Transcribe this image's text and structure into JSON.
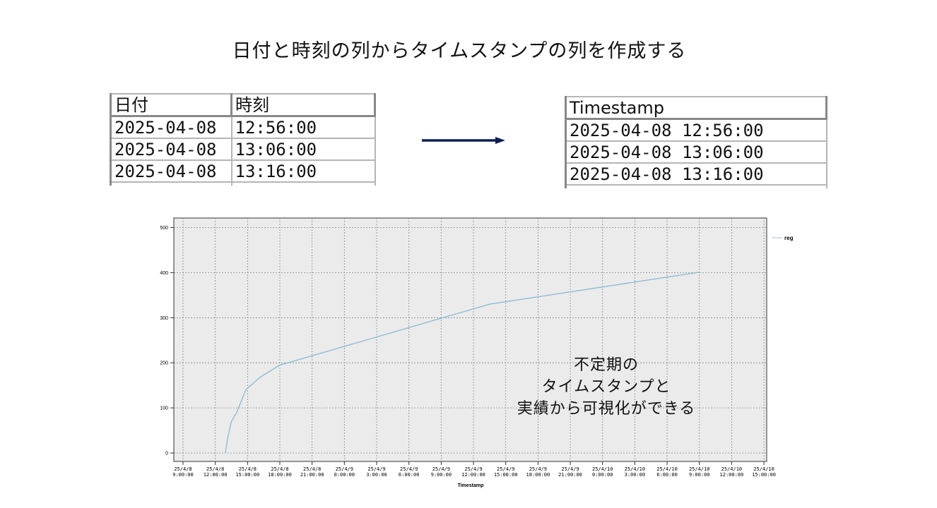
{
  "page": {
    "title": "日付と時刻の列からタイムスタンプの列を作成する",
    "annotation_lines": [
      "不定期の",
      "タイムスタンプと",
      "実績から可視化ができる"
    ],
    "arrow_color": "#0c1f55"
  },
  "left_table": {
    "headers": [
      "日付",
      "時刻"
    ],
    "rows": [
      [
        "2025-04-08",
        "12:56:00"
      ],
      [
        "2025-04-08",
        "13:06:00"
      ],
      [
        "2025-04-08",
        "13:16:00"
      ]
    ]
  },
  "right_table": {
    "headers": [
      "Timestamp"
    ],
    "rows": [
      [
        "2025-04-08 12:56:00"
      ],
      [
        "2025-04-08 13:06:00"
      ],
      [
        "2025-04-08 13:16:00"
      ]
    ]
  },
  "chart_data": {
    "type": "line",
    "title": "",
    "xlabel": "Timestamp",
    "ylabel": "",
    "ylim": [
      0,
      500
    ],
    "yticks": [
      0,
      100,
      200,
      300,
      400,
      500
    ],
    "xticks": [
      "25/4/8 9:00:00",
      "25/4/8 12:00:00",
      "25/4/8 15:00:00",
      "25/4/8 18:00:00",
      "25/4/8 21:00:00",
      "25/4/9 0:00:00",
      "25/4/9 3:00:00",
      "25/4/9 6:00:00",
      "25/4/9 9:00:00",
      "25/4/9 12:00:00",
      "25/4/9 15:00:00",
      "25/4/9 18:00:00",
      "25/4/9 21:00:00",
      "25/4/10 0:00:00",
      "25/4/10 3:00:00",
      "25/4/10 6:00:00",
      "25/4/10 9:00:00",
      "25/4/10 12:00:00",
      "25/4/10 15:00:00"
    ],
    "grid": true,
    "legend_position": "right",
    "background": "#ebebeb",
    "line_color": "#8fbcd6",
    "series": [
      {
        "name": "reg",
        "x": [
          "2025-04-08 12:56",
          "2025-04-08 13:10",
          "2025-04-08 13:30",
          "2025-04-08 14:00",
          "2025-04-08 14:50",
          "2025-04-08 16:10",
          "2025-04-08 18:00",
          "2025-04-08 18:45",
          "2025-04-09 13:30",
          "2025-04-10 09:00"
        ],
        "values": [
          0,
          35,
          70,
          90,
          140,
          168,
          195,
          200,
          330,
          401
        ]
      }
    ]
  }
}
